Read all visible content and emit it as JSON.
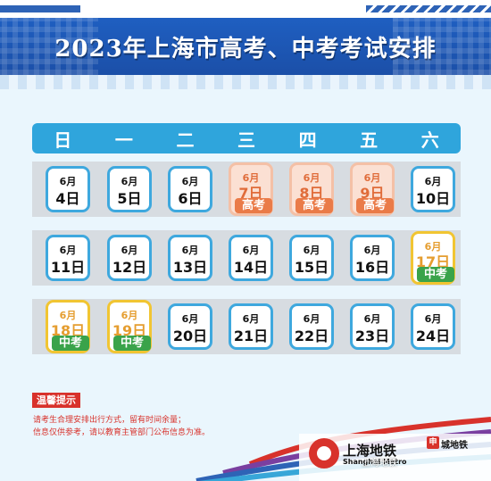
{
  "title": "2023年上海市高考、中考考试安排",
  "weekdays": [
    "日",
    "一",
    "二",
    "三",
    "四",
    "五",
    "六"
  ],
  "month_label": "6月",
  "rows": [
    [
      "4日",
      "5日",
      "6日",
      "7日",
      "8日",
      "9日",
      "10日"
    ],
    [
      "11日",
      "12日",
      "13日",
      "14日",
      "15日",
      "16日",
      "17日"
    ],
    [
      "18日",
      "19日",
      "20日",
      "21日",
      "22日",
      "23日",
      "24日"
    ]
  ],
  "tags": {
    "gaokao": "高考",
    "zhongkao": "中考"
  },
  "highlights": {
    "gaokao_dates": [
      "7日",
      "8日",
      "9日"
    ],
    "zhongkao_dates": [
      "17日",
      "18日",
      "19日"
    ]
  },
  "notice": {
    "title": "温馨提示",
    "lines": [
      "请考生合理安排出行方式，留有时间余量；",
      "信息仅供参考，请以教育主管部门公布信息为准。"
    ]
  },
  "logos": {
    "metro_name": "上海地铁",
    "metro_en": "Shanghai Metro",
    "city_badge": "申",
    "city_name": "城地铁"
  },
  "watermark": "上海地铁",
  "colors": {
    "header_blue": "#1f5fc1",
    "weekbar_blue": "#2fa5dc",
    "cell_border": "#3ea8de",
    "gaokao_orange": "#ea7b48",
    "zhongkao_green": "#3aa34a",
    "zhongkao_border": "#f1c532",
    "notice_red": "#d8322b"
  }
}
